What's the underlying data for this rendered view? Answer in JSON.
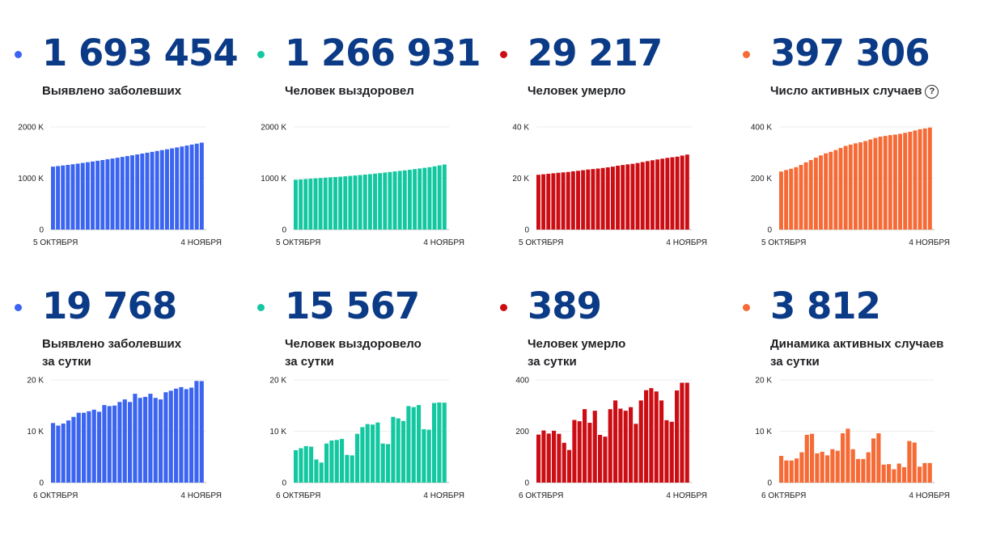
{
  "panels": [
    {
      "value": "1 693 454",
      "caption": [
        "Выявлено заболевших"
      ],
      "help": false,
      "color": "#3b64f0",
      "chart_data": {
        "type": "bar",
        "y_ticks": [
          "2000 K",
          "1000 K",
          "0"
        ],
        "ylim": [
          0,
          2000000
        ],
        "x_start": "5 ОКТЯБРЯ",
        "x_end": "4 НОЯБРЯ",
        "values": [
          1225889,
          1237504,
          1248619,
          1260112,
          1272238,
          1285084,
          1298718,
          1312310,
          1326178,
          1340409,
          1354163,
          1369313,
          1384235,
          1399334,
          1415316,
          1431731,
          1447335,
          1463306,
          1480304,
          1497167,
          1513877,
          1531224,
          1547774,
          1563976,
          1581693,
          1599976,
          1618116,
          1636781,
          1655038,
          1673686,
          1693454
        ]
      }
    },
    {
      "value": "1 266 931",
      "caption": [
        "Человек выздоровел"
      ],
      "help": false,
      "color": "#13c8a1",
      "chart_data": {
        "type": "bar",
        "y_ticks": [
          "2000 K",
          "1000 K",
          "0"
        ],
        "ylim": [
          0,
          2000000
        ],
        "x_start": "5 ОКТЯБРЯ",
        "x_end": "4 НОЯБРЯ",
        "values": [
          971000,
          977000,
          984000,
          991000,
          998000,
          1005000,
          1012000,
          1018000,
          1023000,
          1030000,
          1038000,
          1046000,
          1054000,
          1062000,
          1071000,
          1080000,
          1090000,
          1100000,
          1111000,
          1122000,
          1133000,
          1143000,
          1153000,
          1165000,
          1178000,
          1190000,
          1203000,
          1215000,
          1232000,
          1250000,
          1266931
        ]
      }
    },
    {
      "value": "29 217",
      "caption": [
        "Человек умерло"
      ],
      "help": false,
      "color": "#cc0e14",
      "chart_data": {
        "type": "bar",
        "y_ticks": [
          "40 K",
          "20 K",
          "0"
        ],
        "ylim": [
          0,
          40000
        ],
        "x_start": "5 ОКТЯБРЯ",
        "x_end": "4 НОЯБРЯ",
        "values": [
          21358,
          21545,
          21748,
          21939,
          22126,
          22281,
          22443,
          22696,
          22896,
          23135,
          23400,
          23586,
          23774,
          24006,
          24250,
          24529,
          24888,
          25164,
          25405,
          25619,
          25936,
          26295,
          26653,
          27010,
          27320,
          27626,
          27935,
          28172,
          28407,
          28832,
          29217
        ]
      }
    },
    {
      "value": "397 306",
      "caption": [
        "Число активных случаев"
      ],
      "help": true,
      "color": "#f66a36",
      "chart_data": {
        "type": "bar",
        "y_ticks": [
          "400 K",
          "200 K",
          "0"
        ],
        "ylim": [
          0,
          400000
        ],
        "x_start": "5 ОКТЯБРЯ",
        "x_end": "4 НОЯБРЯ",
        "values": [
          226000,
          232000,
          237000,
          243000,
          252000,
          262000,
          271000,
          280000,
          289000,
          297000,
          303000,
          310000,
          318000,
          326000,
          331000,
          336000,
          340000,
          345000,
          351000,
          357000,
          362000,
          365000,
          368000,
          370000,
          373000,
          377000,
          381000,
          386000,
          391000,
          394000,
          397306
        ]
      }
    },
    {
      "value": "19 768",
      "caption": [
        "Выявлено заболевших",
        "за сутки"
      ],
      "help": false,
      "color": "#3b64f0",
      "chart_data": {
        "type": "bar",
        "y_ticks": [
          "20 K",
          "10 K",
          "0"
        ],
        "ylim": [
          0,
          20000
        ],
        "x_start": "6 ОКТЯБРЯ",
        "x_end": "4 НОЯБРЯ",
        "values": [
          11600,
          11100,
          11500,
          12100,
          12800,
          13600,
          13600,
          13900,
          14200,
          13800,
          15100,
          14900,
          15000,
          15700,
          16200,
          15700,
          17300,
          16500,
          16700,
          17300,
          16500,
          16200,
          17600,
          17900,
          18300,
          18600,
          18200,
          18500,
          19800,
          19768
        ]
      }
    },
    {
      "value": "15 567",
      "caption": [
        "Человек выздоровело",
        "за сутки"
      ],
      "help": false,
      "color": "#13c8a1",
      "chart_data": {
        "type": "bar",
        "y_ticks": [
          "20 K",
          "10 K",
          "0"
        ],
        "ylim": [
          0,
          20000
        ],
        "x_start": "6 ОКТЯБРЯ",
        "x_end": "4 НОЯБРЯ",
        "values": [
          6300,
          6700,
          7100,
          7000,
          4500,
          3900,
          7600,
          8200,
          8300,
          8500,
          5400,
          5300,
          9500,
          10800,
          11400,
          11300,
          11700,
          7600,
          7500,
          12800,
          12500,
          12000,
          14900,
          14700,
          15100,
          10400,
          10300,
          15500,
          15600,
          15567
        ]
      }
    },
    {
      "value": "389",
      "caption": [
        "Человек умерло",
        "за сутки"
      ],
      "help": false,
      "color": "#cc0e14",
      "chart_data": {
        "type": "bar",
        "y_ticks": [
          "400",
          "200",
          "0"
        ],
        "ylim": [
          0,
          400
        ],
        "x_start": "6 ОКТЯБРЯ",
        "x_end": "4 НОЯБРЯ",
        "values": [
          187,
          203,
          191,
          202,
          190,
          155,
          127,
          244,
          239,
          286,
          233,
          280,
          186,
          179,
          286,
          320,
          288,
          280,
          294,
          229,
          320,
          360,
          368,
          355,
          320,
          243,
          237,
          359,
          389,
          389
        ]
      }
    },
    {
      "value": "3 812",
      "caption": [
        "Динамика активных случаев",
        "за сутки"
      ],
      "help": false,
      "color": "#f66a36",
      "chart_data": {
        "type": "bar",
        "y_ticks": [
          "20 K",
          "10 K",
          "0"
        ],
        "ylim": [
          0,
          20000
        ],
        "x_start": "6 ОКТЯБРЯ",
        "x_end": "4 НОЯБРЯ",
        "values": [
          5200,
          4300,
          4300,
          4700,
          5900,
          9300,
          9500,
          5700,
          6000,
          5300,
          6500,
          6200,
          9600,
          10500,
          6500,
          4600,
          4600,
          5900,
          8600,
          9600,
          3500,
          3600,
          2600,
          3700,
          3000,
          8100,
          7800,
          3100,
          3800,
          3812
        ]
      }
    }
  ]
}
